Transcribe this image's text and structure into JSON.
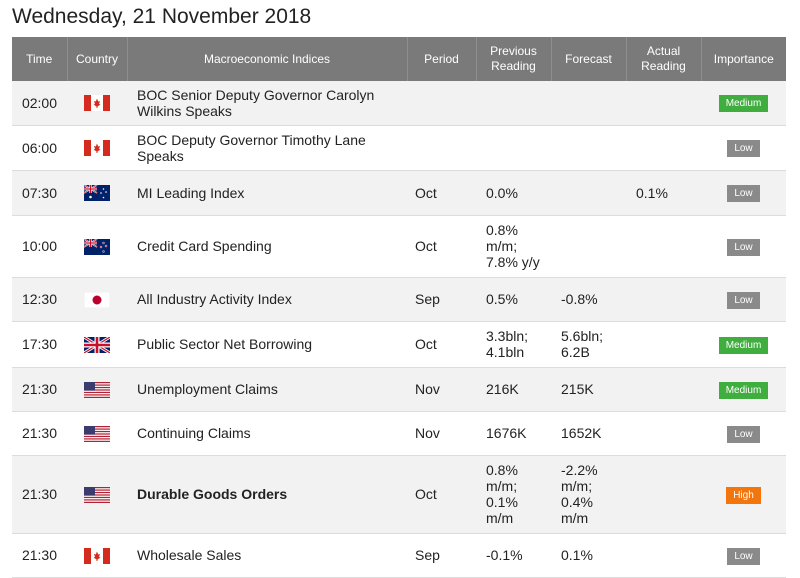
{
  "page": {
    "title": "Wednesday, 21 November 2018"
  },
  "columns": {
    "time": "Time",
    "country": "Country",
    "indices": "Macroeconomic Indices",
    "period": "Period",
    "previous": "Previous Reading",
    "forecast": "Forecast",
    "actual": "Actual Reading",
    "importance": "Importance"
  },
  "colors": {
    "header_bg": "#7a7a7a",
    "row_alt": "#f2f2f2",
    "medium": "#3fae3f",
    "low": "#8a8a8a",
    "high": "#f2750e"
  },
  "rows": [
    {
      "time": "02:00",
      "flag": "ca-flag-icon",
      "indicator": "BOC Senior Deputy Governor Carolyn Wilkins Speaks",
      "period": "",
      "previous": "",
      "forecast": "",
      "actual": "",
      "importance": "Medium"
    },
    {
      "time": "06:00",
      "flag": "ca-flag-icon",
      "indicator": "BOC Deputy Governor Timothy Lane Speaks",
      "period": "",
      "previous": "",
      "forecast": "",
      "actual": "",
      "importance": "Low"
    },
    {
      "time": "07:30",
      "flag": "au-flag-icon",
      "indicator": "MI Leading Index",
      "period": "Oct",
      "previous": "0.0%",
      "forecast": "",
      "actual": "0.1%",
      "importance": "Low"
    },
    {
      "time": "10:00",
      "flag": "nz-flag-icon",
      "indicator": "Credit Card Spending",
      "period": "Oct",
      "previous": "0.8% m/m; 7.8% y/y",
      "forecast": "",
      "actual": "",
      "importance": "Low"
    },
    {
      "time": "12:30",
      "flag": "jp-flag-icon",
      "indicator": "All Industry Activity Index",
      "period": "Sep",
      "previous": "0.5%",
      "forecast": "-0.8%",
      "actual": "",
      "importance": "Low"
    },
    {
      "time": "17:30",
      "flag": "uk-flag-icon",
      "indicator": "Public Sector Net Borrowing",
      "period": "Oct",
      "previous": "3.3bln; 4.1bln",
      "forecast": "5.6bln; 6.2B",
      "actual": "",
      "importance": "Medium"
    },
    {
      "time": "21:30",
      "flag": "us-flag-icon",
      "indicator": "Unemployment Claims",
      "period": "Nov",
      "previous": "216K",
      "forecast": "215K",
      "actual": "",
      "importance": "Medium"
    },
    {
      "time": "21:30",
      "flag": "us-flag-icon",
      "indicator": "Continuing Claims",
      "period": "Nov",
      "previous": "1676K",
      "forecast": "1652K",
      "actual": "",
      "importance": "Low"
    },
    {
      "time": "21:30",
      "flag": "us-flag-icon",
      "indicator": "Durable Goods Orders",
      "period": "Oct",
      "previous": "0.8% m/m; 0.1% m/m",
      "forecast": "-2.2% m/m; 0.4% m/m",
      "actual": "",
      "importance": "High"
    },
    {
      "time": "21:30",
      "flag": "ca-flag-icon",
      "indicator": "Wholesale Sales",
      "period": "Sep",
      "previous": "-0.1%",
      "forecast": "0.1%",
      "actual": "",
      "importance": "Low"
    }
  ]
}
